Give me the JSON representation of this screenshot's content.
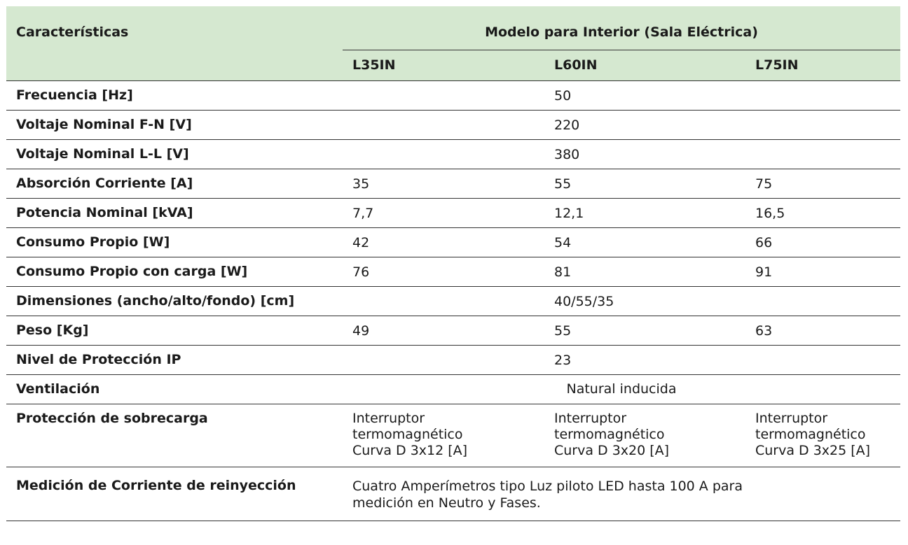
{
  "header": {
    "characteristics": "Características",
    "model_group": "Modelo para Interior (Sala Eléctrica)",
    "models": [
      "L35IN",
      "L60IN",
      "L75IN"
    ]
  },
  "rows": {
    "frecuencia": {
      "label": "Frecuencia [Hz]",
      "all": "50"
    },
    "voltaje_fn": {
      "label": "Voltaje Nominal F-N [V]",
      "all": "220"
    },
    "voltaje_ll": {
      "label": "Voltaje Nominal L-L [V]",
      "all": "380"
    },
    "absorcion": {
      "label": "Absorción Corriente [A]",
      "values": [
        "35",
        "55",
        "75"
      ]
    },
    "potencia": {
      "label": "Potencia Nominal [kVA]",
      "values": [
        "7,7",
        "12,1",
        "16,5"
      ]
    },
    "consumo": {
      "label": "Consumo Propio [W]",
      "values": [
        "42",
        "54",
        "66"
      ]
    },
    "consumo_carga": {
      "label": "Consumo Propio con carga [W]",
      "values": [
        "76",
        "81",
        "91"
      ]
    },
    "dimensiones": {
      "label": "Dimensiones (ancho/alto/fondo) [cm]",
      "all": "40/55/35"
    },
    "peso": {
      "label": "Peso [Kg]",
      "values": [
        "49",
        "55",
        "63"
      ]
    },
    "proteccion_ip": {
      "label": "Nivel de Protección IP",
      "all": "23"
    },
    "ventilacion": {
      "label": "Ventilación",
      "all": "Natural inducida"
    },
    "sobrecarga": {
      "label": "Protección de sobrecarga",
      "values": [
        "Interruptor termomagnético Curva D 3x12 [A]",
        "Interruptor termomagnético Curva D 3x20 [A]",
        "Interruptor termomagnético Curva D 3x25 [A]"
      ]
    },
    "medicion": {
      "label": "Medición de Corriente de reinyección",
      "value": "Cuatro Amperímetros tipo Luz piloto LED hasta 100 A para medición en Neutro y Fases."
    }
  }
}
